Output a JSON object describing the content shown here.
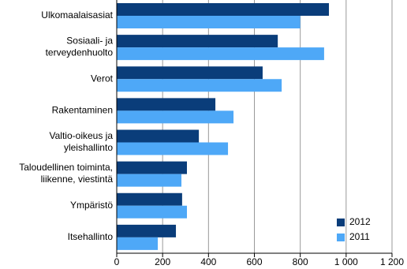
{
  "chart_data": {
    "type": "hbar",
    "categories": [
      "Ulkomaalaisasiat",
      "Sosiaali- ja\nterveydenhuolto",
      "Verot",
      "Rakentaminen",
      "Valtio-oikeus ja\nyleishallinto",
      "Taloudellinen toiminta,\nliikenne, viestintä",
      "Ympäristö",
      "Itsehallinto"
    ],
    "series": [
      {
        "name": "2012",
        "color": "#0a3d7a",
        "values": [
          925,
          702,
          636,
          430,
          358,
          306,
          285,
          258
        ]
      },
      {
        "name": "2011",
        "color": "#4ea8f7",
        "values": [
          800,
          904,
          719,
          509,
          485,
          282,
          306,
          179
        ]
      }
    ],
    "xlim": [
      0,
      1200
    ],
    "xticks": [
      0,
      200,
      400,
      600,
      800,
      {
        "value": 1000,
        "label": "1 000"
      },
      {
        "value": 1200,
        "label": "1 200"
      }
    ],
    "grid": true,
    "legend": "bottom-right"
  }
}
